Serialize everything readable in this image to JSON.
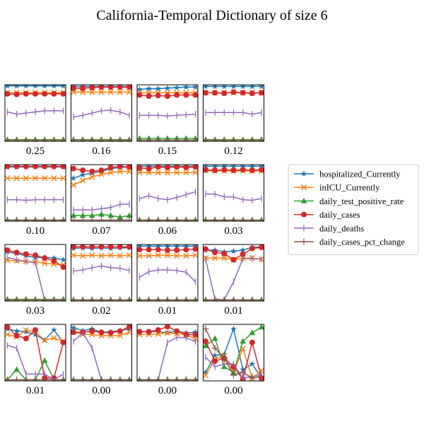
{
  "chart_data": {
    "type": "line",
    "title": "California-Temporal Dictionary of size 6",
    "layout": {
      "rows": 4,
      "cols": 4
    },
    "ylim": [
      0,
      1
    ],
    "legend_position": "right",
    "series_styles": [
      {
        "name": "hospitalized_Currently",
        "color": "#1f77b4",
        "marker": "star"
      },
      {
        "name": "inICU_Currently",
        "color": "#ff7f0e",
        "marker": "x"
      },
      {
        "name": "daily_test_positive_rate",
        "color": "#2ca02c",
        "marker": "triangle"
      },
      {
        "name": "daily_cases",
        "color": "#d62728",
        "marker": "circle"
      },
      {
        "name": "daily_deaths",
        "color": "#9467bd",
        "marker": "vline"
      },
      {
        "name": "daily_cases_pct_change",
        "color": "#8c564b",
        "marker": "plus"
      }
    ],
    "panels": [
      {
        "label": "0.25",
        "series": [
          [
            0.98,
            0.98,
            0.98,
            0.98,
            0.98,
            0.98,
            0.98
          ],
          [
            0.86,
            0.86,
            0.86,
            0.86,
            0.86,
            0.86,
            0.86
          ],
          [
            0.03,
            0.03,
            0.03,
            0.03,
            0.03,
            0.03,
            0.03
          ],
          [
            0.84,
            0.83,
            0.84,
            0.84,
            0.84,
            0.84,
            0.84
          ],
          [
            0.52,
            0.48,
            0.5,
            0.52,
            0.54,
            0.54,
            0.54
          ],
          [
            0.02,
            0.02,
            0.02,
            0.02,
            0.02,
            0.02,
            0.02
          ]
        ]
      },
      {
        "label": "0.16",
        "series": [
          [
            0.97,
            0.97,
            0.97,
            0.97,
            0.97,
            0.97,
            0.97
          ],
          [
            0.87,
            0.87,
            0.87,
            0.87,
            0.87,
            0.87,
            0.87
          ],
          [
            0.03,
            0.03,
            0.03,
            0.03,
            0.03,
            0.03,
            0.03
          ],
          [
            0.94,
            0.94,
            0.95,
            0.96,
            0.96,
            0.96,
            0.96
          ],
          [
            0.43,
            0.46,
            0.5,
            0.54,
            0.55,
            0.52,
            0.46
          ],
          [
            0.02,
            0.02,
            0.02,
            0.02,
            0.02,
            0.02,
            0.02
          ]
        ]
      },
      {
        "label": "0.15",
        "series": [
          [
            0.92,
            0.93,
            0.93,
            0.94,
            0.95,
            0.96,
            0.96
          ],
          [
            0.86,
            0.86,
            0.86,
            0.86,
            0.86,
            0.86,
            0.86
          ],
          [
            0.05,
            0.05,
            0.05,
            0.05,
            0.05,
            0.05,
            0.05
          ],
          [
            0.82,
            0.8,
            0.81,
            0.8,
            0.82,
            0.82,
            0.82
          ],
          [
            0.46,
            0.46,
            0.46,
            0.45,
            0.46,
            0.47,
            0.48
          ],
          [
            0.02,
            0.02,
            0.02,
            0.02,
            0.02,
            0.02,
            0.02
          ]
        ]
      },
      {
        "label": "0.12",
        "series": [
          [
            0.97,
            0.97,
            0.97,
            0.97,
            0.97,
            0.97,
            0.97
          ],
          [
            0.86,
            0.86,
            0.86,
            0.86,
            0.86,
            0.86,
            0.86
          ],
          [
            0.03,
            0.03,
            0.03,
            0.03,
            0.03,
            0.03,
            0.03
          ],
          [
            0.86,
            0.86,
            0.85,
            0.87,
            0.86,
            0.85,
            0.86
          ],
          [
            0.51,
            0.51,
            0.51,
            0.51,
            0.51,
            0.48,
            0.51
          ],
          [
            0.02,
            0.02,
            0.02,
            0.02,
            0.02,
            0.02,
            0.02
          ]
        ]
      },
      {
        "label": "0.10",
        "series": [
          [
            0.96,
            0.96,
            0.96,
            0.96,
            0.96,
            0.96,
            0.96
          ],
          [
            0.76,
            0.76,
            0.76,
            0.76,
            0.76,
            0.76,
            0.76
          ],
          [
            0.02,
            0.02,
            0.02,
            0.02,
            0.02,
            0.02,
            0.02
          ],
          [
            0.97,
            0.97,
            0.97,
            0.97,
            0.97,
            0.97,
            0.97
          ],
          [
            0.38,
            0.38,
            0.37,
            0.38,
            0.38,
            0.38,
            0.38
          ],
          [
            0.02,
            0.02,
            0.02,
            0.02,
            0.02,
            0.02,
            0.02
          ]
        ]
      },
      {
        "label": "0.07",
        "series": [
          [
            0.76,
            0.82,
            0.85,
            0.88,
            0.93,
            0.95,
            0.96
          ],
          [
            0.64,
            0.72,
            0.78,
            0.83,
            0.86,
            0.88,
            0.88
          ],
          [
            0.1,
            0.1,
            0.1,
            0.12,
            0.1,
            0.07,
            0.1
          ],
          [
            0.93,
            0.9,
            0.88,
            0.9,
            0.95,
            0.97,
            0.96
          ],
          [
            0.2,
            0.2,
            0.2,
            0.22,
            0.24,
            0.3,
            0.3
          ],
          [
            0.02,
            0.02,
            0.02,
            0.02,
            0.02,
            0.02,
            0.02
          ]
        ]
      },
      {
        "label": "0.06",
        "series": [
          [
            0.97,
            0.97,
            0.97,
            0.97,
            0.97,
            0.97,
            0.97
          ],
          [
            0.86,
            0.86,
            0.86,
            0.86,
            0.86,
            0.86,
            0.86
          ],
          [
            0.02,
            0.02,
            0.02,
            0.02,
            0.02,
            0.02,
            0.02
          ],
          [
            0.94,
            0.93,
            0.96,
            0.95,
            0.96,
            0.95,
            0.96
          ],
          [
            0.4,
            0.45,
            0.4,
            0.38,
            0.42,
            0.47,
            0.52
          ],
          [
            0.02,
            0.02,
            0.02,
            0.02,
            0.02,
            0.02,
            0.02
          ]
        ]
      },
      {
        "label": "0.03",
        "series": [
          [
            0.97,
            0.97,
            0.97,
            0.97,
            0.97,
            0.97,
            0.97
          ],
          [
            0.89,
            0.89,
            0.89,
            0.89,
            0.89,
            0.89,
            0.89
          ],
          [
            0.02,
            0.02,
            0.02,
            0.02,
            0.02,
            0.02,
            0.02
          ],
          [
            0.91,
            0.9,
            0.91,
            0.9,
            0.91,
            0.9,
            0.91
          ],
          [
            0.48,
            0.48,
            0.43,
            0.43,
            0.38,
            0.37,
            0.4
          ],
          [
            0.02,
            0.02,
            0.02,
            0.02,
            0.02,
            0.02,
            0.02
          ]
        ]
      },
      {
        "label": "0.03",
        "series": [
          [
            0.87,
            0.84,
            0.8,
            0.77,
            0.77,
            0.76,
            0.73
          ],
          [
            0.72,
            0.71,
            0.7,
            0.69,
            0.67,
            0.65,
            0.64
          ],
          [
            0.03,
            0.03,
            0.03,
            0.03,
            0.03,
            0.03,
            0.03
          ],
          [
            0.9,
            0.86,
            0.83,
            0.81,
            0.76,
            0.71,
            0.6
          ],
          [
            0.77,
            0.73,
            0.7,
            0.68,
            0.02,
            0.02,
            0.02
          ],
          [
            0.02,
            0.02,
            0.02,
            0.02,
            0.02,
            0.02,
            0.02
          ]
        ]
      },
      {
        "label": "0.02",
        "series": [
          [
            0.93,
            0.94,
            0.93,
            0.94,
            0.93,
            0.94,
            0.94
          ],
          [
            0.81,
            0.8,
            0.81,
            0.8,
            0.81,
            0.8,
            0.81
          ],
          [
            0.02,
            0.02,
            0.02,
            0.02,
            0.02,
            0.02,
            0.02
          ],
          [
            0.96,
            0.96,
            0.96,
            0.96,
            0.96,
            0.96,
            0.96
          ],
          [
            0.53,
            0.55,
            0.59,
            0.62,
            0.59,
            0.58,
            0.54
          ],
          [
            0.02,
            0.02,
            0.02,
            0.02,
            0.02,
            0.02,
            0.02
          ]
        ]
      },
      {
        "label": "0.01",
        "series": [
          [
            0.97,
            0.97,
            0.97,
            0.97,
            0.97,
            0.97,
            0.97
          ],
          [
            0.8,
            0.8,
            0.81,
            0.81,
            0.8,
            0.8,
            0.81
          ],
          [
            0.02,
            0.02,
            0.02,
            0.02,
            0.02,
            0.02,
            0.02
          ],
          [
            0.91,
            0.91,
            0.91,
            0.9,
            0.9,
            0.91,
            0.92
          ],
          [
            0.42,
            0.52,
            0.55,
            0.55,
            0.54,
            0.51,
            0.34
          ],
          [
            0.02,
            0.02,
            0.02,
            0.02,
            0.02,
            0.02,
            0.02
          ]
        ]
      },
      {
        "label": "0.01",
        "series": [
          [
            0.9,
            0.9,
            0.87,
            0.88,
            0.9,
            0.95,
            0.96
          ],
          [
            0.76,
            0.76,
            0.76,
            0.73,
            0.76,
            0.76,
            0.74
          ],
          [
            0.02,
            0.02,
            0.02,
            0.02,
            0.02,
            0.02,
            0.02
          ],
          [
            0.92,
            0.86,
            0.84,
            0.73,
            0.83,
            0.93,
            0.95
          ],
          [
            0.74,
            0.04,
            0.02,
            0.34,
            0.75,
            0.75,
            0.74
          ],
          [
            0.02,
            0.02,
            0.02,
            0.02,
            0.02,
            0.02,
            0.02
          ]
        ]
      },
      {
        "label": "0.01",
        "series": [
          [
            0.92,
            0.88,
            0.87,
            0.82,
            0.72,
            0.9,
            0.68
          ],
          [
            0.82,
            0.78,
            0.9,
            0.87,
            0.72,
            0.76,
            0.7
          ],
          [
            0.02,
            0.2,
            0.02,
            0.02,
            0.36,
            0.02,
            0.02
          ],
          [
            0.95,
            0.8,
            0.75,
            0.9,
            0.05,
            0.05,
            0.68
          ],
          [
            0.63,
            0.58,
            0.12,
            0.12,
            0.12,
            0.02,
            0.12
          ],
          [
            0.02,
            0.02,
            0.02,
            0.02,
            0.02,
            0.02,
            0.02
          ]
        ]
      },
      {
        "label": "0.00",
        "series": [
          [
            0.94,
            0.89,
            0.92,
            0.86,
            0.87,
            0.89,
            0.92
          ],
          [
            0.87,
            0.82,
            0.82,
            0.8,
            0.8,
            0.8,
            0.86
          ],
          [
            0.02,
            0.02,
            0.02,
            0.02,
            0.02,
            0.02,
            0.02
          ],
          [
            0.86,
            0.86,
            0.88,
            0.86,
            0.85,
            0.88,
            0.96
          ],
          [
            0.7,
            0.85,
            0.58,
            0.02,
            0.02,
            0.02,
            0.02
          ],
          [
            0.02,
            0.02,
            0.02,
            0.02,
            0.02,
            0.02,
            0.02
          ]
        ]
      },
      {
        "label": "0.00",
        "series": [
          [
            0.87,
            0.87,
            0.87,
            0.85,
            0.88,
            0.85,
            0.86
          ],
          [
            0.82,
            0.82,
            0.83,
            0.85,
            0.83,
            0.82,
            0.74
          ],
          [
            0.02,
            0.02,
            0.02,
            0.02,
            0.02,
            0.02,
            0.02
          ],
          [
            0.87,
            0.87,
            0.9,
            0.96,
            0.88,
            0.82,
            0.82
          ],
          [
            0.02,
            0.02,
            0.02,
            0.68,
            0.77,
            0.76,
            0.7
          ],
          [
            0.02,
            0.02,
            0.02,
            0.02,
            0.02,
            0.02,
            0.02
          ]
        ]
      },
      {
        "label": "0.00",
        "series": [
          [
            0.15,
            0.45,
            0.47,
            0.92,
            0.2,
            0.3,
            0.05
          ],
          [
            0.1,
            0.38,
            0.45,
            0.15,
            0.57,
            0.05,
            0.18
          ],
          [
            0.62,
            0.75,
            0.25,
            0.15,
            0.7,
            0.85,
            0.95
          ],
          [
            0.7,
            0.35,
            0.4,
            0.25,
            0.03,
            0.68,
            0.05
          ],
          [
            0.42,
            0.25,
            0.3,
            0.3,
            0.05,
            0.08,
            0.1
          ],
          [
            0.92,
            0.58,
            0.4,
            0.1,
            0.15,
            0.05,
            0.08
          ]
        ]
      }
    ]
  }
}
